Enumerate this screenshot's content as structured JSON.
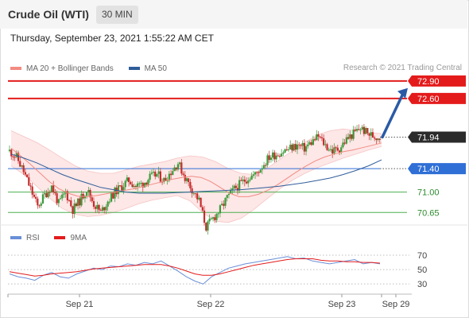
{
  "header": {
    "title": "Crude Oil (WTI)",
    "interval": "30 MIN"
  },
  "datetime": "Thursday, September 23, 2021 1:55:22 AM CET",
  "legend": {
    "items": [
      {
        "label": "MA 20 + Bollinger Bands",
        "color": "#f28b82"
      },
      {
        "label": "MA 50",
        "color": "#2f5d9a"
      }
    ],
    "credit": "Research © 2021 Trading Central"
  },
  "rsi_legend": {
    "items": [
      {
        "label": "RSI",
        "color": "#6a8fd8"
      },
      {
        "label": "9MA",
        "color": "#e41b1b"
      }
    ]
  },
  "colors": {
    "resistance": "#e41b1b",
    "support": "#2f6fd6",
    "target_support": "#4caf50",
    "arrow": "#2a5aa6",
    "last": "#2b2b2b"
  },
  "chart_data": [
    {
      "type": "line",
      "title": "",
      "xlabel": "",
      "ylabel": "",
      "x_ticks": [
        "Sep 21",
        "Sep 22",
        "Sep 23",
        "Sep 29"
      ],
      "ylim": [
        70.45,
        72.98
      ],
      "levels": [
        {
          "value": 72.9,
          "label": "72.90",
          "kind": "resistance"
        },
        {
          "value": 72.6,
          "label": "72.60",
          "kind": "resistance"
        },
        {
          "value": 71.94,
          "label": "71.94",
          "kind": "last"
        },
        {
          "value": 71.4,
          "label": "71.40",
          "kind": "pivot"
        },
        {
          "value": 71.0,
          "label": "71.00",
          "kind": "support"
        },
        {
          "value": 70.65,
          "label": "70.65",
          "kind": "support"
        }
      ],
      "price_path": [
        71.7,
        71.6,
        71.35,
        71.05,
        70.75,
        70.95,
        71.1,
        70.8,
        71.0,
        70.7,
        70.85,
        71.05,
        70.8,
        70.65,
        70.85,
        71.0,
        71.1,
        71.2,
        71.1,
        71.15,
        71.25,
        71.3,
        71.2,
        71.35,
        71.5,
        71.25,
        71.05,
        70.85,
        70.4,
        70.55,
        70.7,
        70.9,
        71.05,
        71.15,
        71.25,
        71.3,
        71.45,
        71.6,
        71.65,
        71.7,
        71.75,
        71.8,
        71.75,
        71.85,
        71.95,
        71.8,
        71.7,
        71.75,
        71.9,
        72.0,
        72.1,
        72.0,
        71.95,
        71.94
      ],
      "ma20": [
        71.75,
        71.62,
        71.48,
        71.33,
        71.18,
        71.06,
        70.98,
        70.93,
        70.92,
        70.94,
        70.97,
        71.0,
        71.03,
        71.06,
        71.1,
        71.14,
        71.18,
        71.22,
        71.25,
        71.27,
        71.25,
        71.18,
        71.08,
        70.98,
        70.92,
        70.92,
        70.96,
        71.03,
        71.12,
        71.23,
        71.34,
        71.44,
        71.53,
        71.6,
        71.65,
        71.69,
        71.72,
        71.76,
        71.8,
        71.84
      ],
      "bb_upper": [
        72.05,
        71.95,
        71.85,
        71.72,
        71.58,
        71.45,
        71.36,
        71.32,
        71.32,
        71.38,
        71.44,
        71.48,
        71.52,
        71.58,
        71.62,
        71.6,
        71.52,
        71.4,
        71.32,
        71.3,
        71.4,
        71.55,
        71.7,
        71.85,
        71.98,
        72.05,
        72.08,
        72.05,
        72.02,
        72.0
      ],
      "bb_lower": [
        71.45,
        71.3,
        71.1,
        70.9,
        70.72,
        70.62,
        70.58,
        70.6,
        70.65,
        70.72,
        70.8,
        70.86,
        70.9,
        70.94,
        70.85,
        70.65,
        70.5,
        70.48,
        70.55,
        70.7,
        70.88,
        71.05,
        71.2,
        71.32,
        71.42,
        71.5,
        71.58,
        71.65,
        71.72,
        71.78
      ],
      "ma50": [
        71.65,
        71.58,
        71.5,
        71.4,
        71.3,
        71.22,
        71.15,
        71.08,
        71.04,
        71.0,
        70.98,
        70.98,
        70.98,
        70.99,
        71.0,
        71.01,
        71.02,
        71.03,
        71.04,
        71.06,
        71.08,
        71.1,
        71.13,
        71.16,
        71.2,
        71.24,
        71.3,
        71.37,
        71.45,
        71.55
      ]
    },
    {
      "type": "line",
      "title": "",
      "ylim": [
        18,
        80
      ],
      "y_ticks": [
        70,
        50,
        30
      ],
      "series": [
        {
          "name": "RSI",
          "values": [
            44,
            40,
            38,
            35,
            42,
            46,
            40,
            38,
            44,
            48,
            52,
            50,
            55,
            54,
            58,
            56,
            60,
            58,
            62,
            55,
            48,
            40,
            34,
            30,
            40,
            46,
            52,
            55,
            58,
            60,
            62,
            64,
            66,
            68,
            65,
            66,
            62,
            60,
            58,
            60,
            62,
            64,
            58,
            60,
            58
          ]
        },
        {
          "name": "9MA",
          "values": [
            47,
            45,
            43,
            41,
            42,
            44,
            45,
            46,
            47,
            49,
            51,
            52,
            53,
            54,
            55,
            56,
            57,
            57,
            57,
            55,
            52,
            48,
            44,
            42,
            42,
            44,
            47,
            50,
            53,
            56,
            58,
            60,
            62,
            64,
            65,
            65,
            65,
            63,
            62,
            62,
            61,
            61,
            60,
            60,
            59
          ]
        }
      ]
    }
  ]
}
